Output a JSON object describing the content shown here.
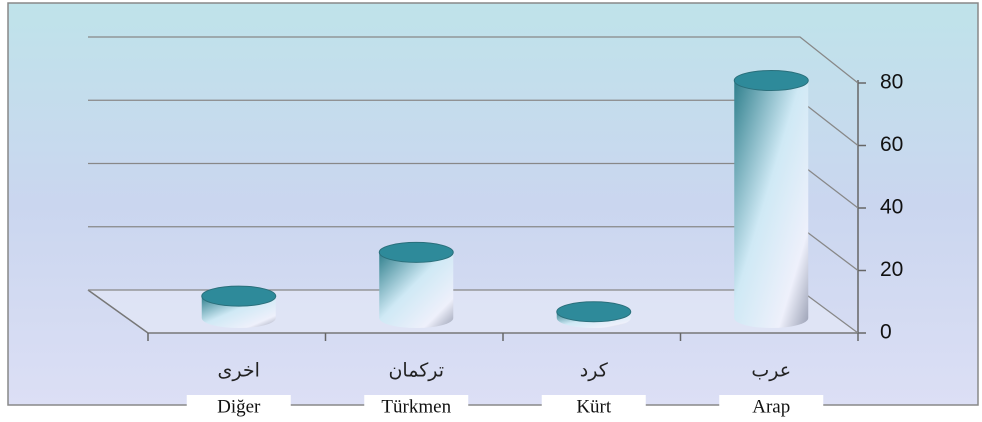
{
  "chart_data": {
    "type": "bar3d",
    "categories": [
      "اخرى",
      "تركمان",
      "كرد",
      "عرب"
    ],
    "category_translations": [
      "Diğer",
      "Türkmen",
      "Kürt",
      "Arap"
    ],
    "values": [
      7,
      21,
      2,
      76
    ],
    "color": "#2e8a9a",
    "ylim": [
      0,
      80
    ],
    "yticks": [
      0,
      20,
      40,
      60,
      80
    ],
    "grid": true
  }
}
